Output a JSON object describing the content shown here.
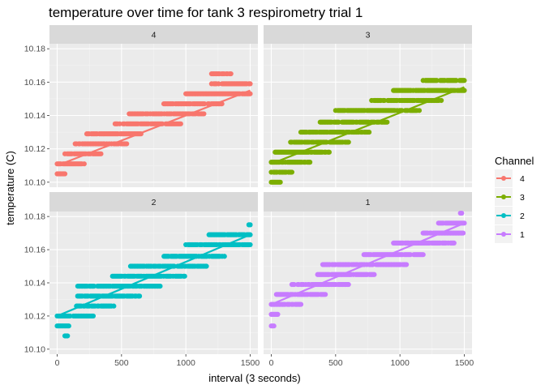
{
  "chart_data": {
    "type": "scatter",
    "title": "temperature over time for tank 3 respirometry trial 1",
    "xlabel": "interval (3 seconds)",
    "ylabel": "temperature (C)",
    "xlim": [
      -60,
      1560
    ],
    "xticks": [
      0,
      500,
      1000,
      1500
    ],
    "xtick_labels": [
      "0",
      "500",
      "1000",
      "1500"
    ],
    "top_row_ylim": [
      10.097,
      10.183
    ],
    "bottom_row_ylim": [
      10.097,
      10.183
    ],
    "yticks": [
      10.1,
      10.12,
      10.14,
      10.16,
      10.18
    ],
    "ytick_labels": [
      "10.10",
      "10.12",
      "10.14",
      "10.16",
      "10.18"
    ],
    "grid": true,
    "legend": {
      "title": "Channel",
      "position": "right",
      "entries": [
        {
          "label": "4",
          "color": "#F8766D"
        },
        {
          "label": "3",
          "color": "#7CAE00"
        },
        {
          "label": "2",
          "color": "#00BFC4"
        },
        {
          "label": "1",
          "color": "#C77CFF"
        }
      ]
    },
    "panels": [
      {
        "strip": "4",
        "color": "#F8766D",
        "fit_line": {
          "x": [
            0,
            1500
          ],
          "y": [
            10.11,
            10.155
          ]
        },
        "point_bands": [
          {
            "y": 10.105,
            "x_from": 0,
            "x_to": 60
          },
          {
            "y": 10.111,
            "x_from": 0,
            "x_to": 210
          },
          {
            "y": 10.117,
            "x_from": 60,
            "x_to": 340
          },
          {
            "y": 10.123,
            "x_from": 140,
            "x_to": 540
          },
          {
            "y": 10.129,
            "x_from": 230,
            "x_to": 660
          },
          {
            "y": 10.135,
            "x_from": 450,
            "x_to": 960
          },
          {
            "y": 10.141,
            "x_from": 560,
            "x_to": 1140
          },
          {
            "y": 10.147,
            "x_from": 820,
            "x_to": 1280
          },
          {
            "y": 10.153,
            "x_from": 1000,
            "x_to": 1500
          },
          {
            "y": 10.159,
            "x_from": 1200,
            "x_to": 1500
          },
          {
            "y": 10.165,
            "x_from": 1200,
            "x_to": 1350
          }
        ]
      },
      {
        "strip": "3",
        "color": "#7CAE00",
        "fit_line": {
          "x": [
            0,
            1500
          ],
          "y": [
            10.111,
            10.157
          ]
        },
        "point_bands": [
          {
            "y": 10.1,
            "x_from": 0,
            "x_to": 70
          },
          {
            "y": 10.106,
            "x_from": 0,
            "x_to": 160
          },
          {
            "y": 10.112,
            "x_from": 0,
            "x_to": 300
          },
          {
            "y": 10.118,
            "x_from": 30,
            "x_to": 450
          },
          {
            "y": 10.124,
            "x_from": 150,
            "x_to": 600
          },
          {
            "y": 10.13,
            "x_from": 230,
            "x_to": 760
          },
          {
            "y": 10.136,
            "x_from": 380,
            "x_to": 900
          },
          {
            "y": 10.143,
            "x_from": 500,
            "x_to": 1150
          },
          {
            "y": 10.149,
            "x_from": 780,
            "x_to": 1330
          },
          {
            "y": 10.155,
            "x_from": 950,
            "x_to": 1500
          },
          {
            "y": 10.161,
            "x_from": 1180,
            "x_to": 1500
          }
        ]
      },
      {
        "strip": "2",
        "color": "#00BFC4",
        "fit_line": {
          "x": [
            0,
            1500
          ],
          "y": [
            10.12,
            10.169
          ]
        },
        "point_bands": [
          {
            "y": 10.108,
            "x_from": 60,
            "x_to": 80
          },
          {
            "y": 10.114,
            "x_from": 0,
            "x_to": 90
          },
          {
            "y": 10.12,
            "x_from": 0,
            "x_to": 280
          },
          {
            "y": 10.126,
            "x_from": 150,
            "x_to": 440
          },
          {
            "y": 10.132,
            "x_from": 150,
            "x_to": 640
          },
          {
            "y": 10.138,
            "x_from": 160,
            "x_to": 800
          },
          {
            "y": 10.144,
            "x_from": 430,
            "x_to": 1000
          },
          {
            "y": 10.15,
            "x_from": 570,
            "x_to": 1160
          },
          {
            "y": 10.156,
            "x_from": 830,
            "x_to": 1300
          },
          {
            "y": 10.163,
            "x_from": 1000,
            "x_to": 1500
          },
          {
            "y": 10.169,
            "x_from": 1180,
            "x_to": 1500
          },
          {
            "y": 10.175,
            "x_from": 1490,
            "x_to": 1500
          }
        ]
      },
      {
        "strip": "1",
        "color": "#C77CFF",
        "fit_line": {
          "x": [
            0,
            1500
          ],
          "y": [
            10.127,
            10.176
          ]
        },
        "point_bands": [
          {
            "y": 10.114,
            "x_from": 0,
            "x_to": 20
          },
          {
            "y": 10.121,
            "x_from": 0,
            "x_to": 50
          },
          {
            "y": 10.127,
            "x_from": 0,
            "x_to": 230
          },
          {
            "y": 10.133,
            "x_from": 40,
            "x_to": 420
          },
          {
            "y": 10.139,
            "x_from": 160,
            "x_to": 600
          },
          {
            "y": 10.145,
            "x_from": 360,
            "x_to": 800
          },
          {
            "y": 10.151,
            "x_from": 400,
            "x_to": 1050
          },
          {
            "y": 10.157,
            "x_from": 720,
            "x_to": 1180
          },
          {
            "y": 10.164,
            "x_from": 950,
            "x_to": 1420
          },
          {
            "y": 10.17,
            "x_from": 1180,
            "x_to": 1500
          },
          {
            "y": 10.176,
            "x_from": 1300,
            "x_to": 1500
          },
          {
            "y": 10.182,
            "x_from": 1470,
            "x_to": 1480
          }
        ]
      }
    ]
  }
}
